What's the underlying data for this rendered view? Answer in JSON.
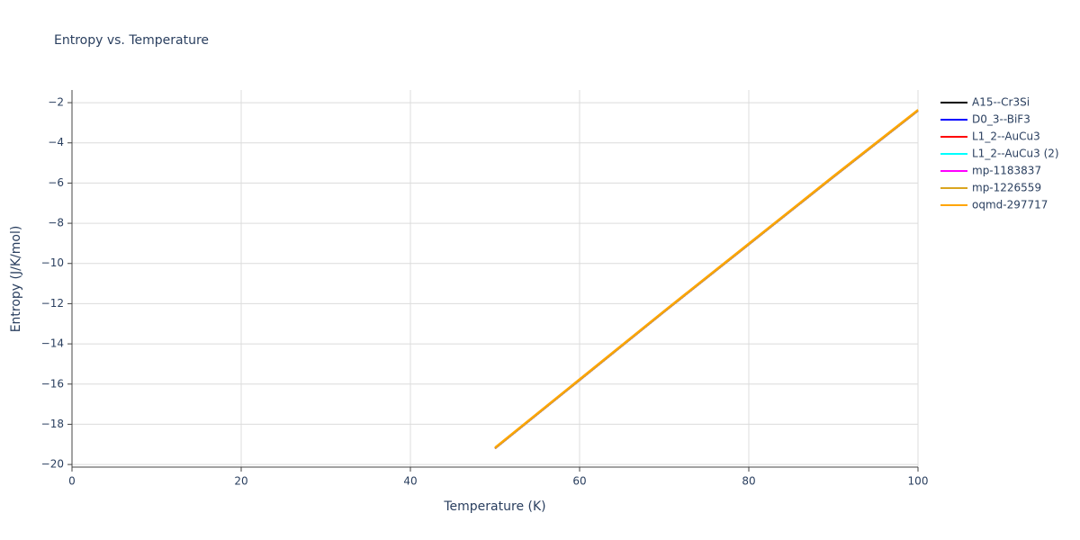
{
  "chart_data": {
    "type": "line",
    "title": "Entropy vs. Temperature",
    "x_label": "Temperature (K)",
    "y_label": "Entropy (J/K/mol)",
    "x": [
      50,
      60,
      70,
      80,
      90,
      100
    ],
    "series": [
      {
        "name": "A15--Cr3Si",
        "color": "#000000",
        "values": [
          -19.2,
          -15.8,
          -12.4,
          -9.05,
          -5.7,
          -2.4
        ]
      },
      {
        "name": "D0_3--BiF3",
        "color": "#0000ff",
        "values": [
          -19.2,
          -15.8,
          -12.4,
          -9.05,
          -5.7,
          -2.4
        ]
      },
      {
        "name": "L1_2--AuCu3",
        "color": "#ff0000",
        "values": [
          -19.2,
          -15.8,
          -12.4,
          -9.05,
          -5.7,
          -2.4
        ]
      },
      {
        "name": "L1_2--AuCu3 (2)",
        "color": "#00ffff",
        "values": [
          -19.2,
          -15.8,
          -12.4,
          -9.05,
          -5.7,
          -2.4
        ]
      },
      {
        "name": "mp-1183837",
        "color": "#ff00ff",
        "values": [
          -19.2,
          -15.8,
          -12.4,
          -9.05,
          -5.7,
          -2.4
        ]
      },
      {
        "name": "mp-1226559",
        "color": "#daa520",
        "values": [
          -19.2,
          -15.8,
          -12.4,
          -9.05,
          -5.7,
          -2.4
        ]
      },
      {
        "name": "oqmd-297717",
        "color": "#ffa500",
        "values": [
          -19.15,
          -15.75,
          -12.35,
          -9.0,
          -5.65,
          -2.35
        ]
      }
    ],
    "xlim": [
      0,
      100
    ],
    "xticks": [
      0,
      20,
      40,
      60,
      80,
      100
    ],
    "ylim": [
      -20.13,
      -1.37
    ],
    "yticks": [
      {
        "value": -20,
        "label": "−20"
      },
      {
        "value": -18,
        "label": "−18"
      },
      {
        "value": -16,
        "label": "−16"
      },
      {
        "value": -14,
        "label": "−14"
      },
      {
        "value": -12,
        "label": "−12"
      },
      {
        "value": -10,
        "label": "−10"
      },
      {
        "value": -8,
        "label": "−8"
      },
      {
        "value": -6,
        "label": "−6"
      },
      {
        "value": -4,
        "label": "−4"
      },
      {
        "value": -2,
        "label": "−2"
      }
    ],
    "grid": true,
    "legend": "right"
  }
}
